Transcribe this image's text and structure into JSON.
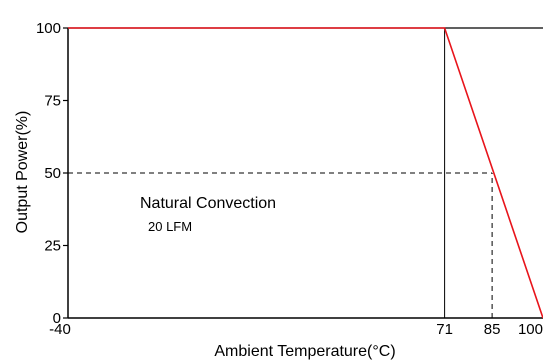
{
  "chart_data": {
    "type": "line",
    "xlabel": "Ambient Temperature(°C)",
    "ylabel": "Output Power(%)",
    "xlim": [
      -40,
      100
    ],
    "ylim": [
      0,
      100
    ],
    "x_ticks": [
      "-40",
      "71",
      "85",
      "100"
    ],
    "y_ticks": [
      "0",
      "25",
      "50",
      "75",
      "100"
    ],
    "series": [
      {
        "x": [
          -40,
          71,
          100
        ],
        "y": [
          100,
          100,
          0
        ],
        "color": "#e8141b"
      }
    ],
    "reference_lines": [
      {
        "style": "solid",
        "x": [
          71,
          71
        ],
        "y": [
          0,
          100
        ]
      },
      {
        "style": "dashed",
        "x": [
          -40,
          85
        ],
        "y": [
          50,
          50
        ]
      },
      {
        "style": "dashed",
        "x": [
          85,
          85
        ],
        "y": [
          0,
          50
        ]
      }
    ],
    "annotations": [
      {
        "text": "Natural Convection"
      },
      {
        "text": "20 LFM"
      }
    ],
    "grid": false
  }
}
